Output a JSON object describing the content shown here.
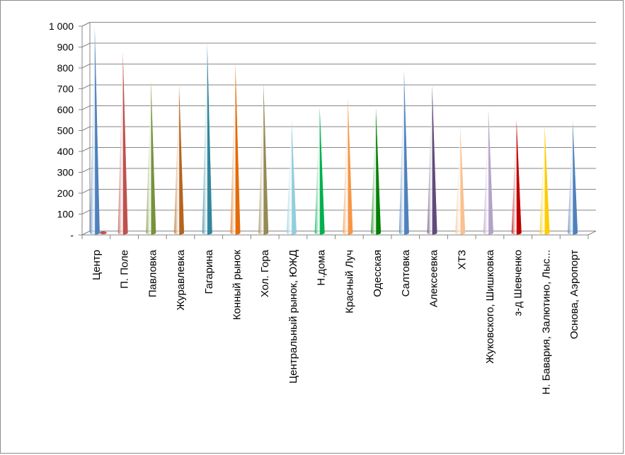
{
  "chart_data": {
    "type": "bar",
    "title": "",
    "xlabel": "",
    "ylabel": "",
    "ylim": [
      0,
      1000
    ],
    "yticks": [
      0,
      100,
      200,
      300,
      400,
      500,
      600,
      700,
      800,
      900,
      1000
    ],
    "ytick_labels": [
      "-",
      "100",
      "200",
      "300",
      "400",
      "500",
      "600",
      "700",
      "800",
      "900",
      "1 000"
    ],
    "grid": true,
    "legend": "none",
    "categories": [
      "Центр",
      "П. Поле",
      "Павловка",
      "Журавлевка",
      "Гагарина",
      "Конный рынок",
      "Хол. Гора",
      "Центральный рынок, ЮЖД",
      "Н.дома",
      "Красный Луч",
      "Одесская",
      "Салтовка",
      "Алексеевка",
      "ХТЗ",
      "Жуковского, Шишковка",
      "з-д Шевченко",
      "Н. Бавария, Залютино, Лыс...",
      "Основа, Аэропорт"
    ],
    "series": [
      {
        "values": [
          990,
          870,
          730,
          710,
          910,
          815,
          720,
          550,
          605,
          650,
          600,
          780,
          710,
          510,
          595,
          545,
          520,
          540
        ]
      },
      {
        "values": [
          5,
          0,
          0,
          0,
          0,
          0,
          0,
          0,
          0,
          0,
          0,
          0,
          0,
          0,
          0,
          0,
          0,
          0
        ]
      }
    ],
    "colors": [
      "#4f81bd",
      "#c0504d",
      "#77933c",
      "#b5651d",
      "#31859c",
      "#e46c0a",
      "#948a54",
      "#93cddd",
      "#00b050",
      "#f79646",
      "#008000",
      "#4f81bd",
      "#604a7b",
      "#fac090",
      "#b3a2c7",
      "#c00000",
      "#ffcc00",
      "#4f81bd"
    ],
    "secondary_color": "#c0504d"
  }
}
